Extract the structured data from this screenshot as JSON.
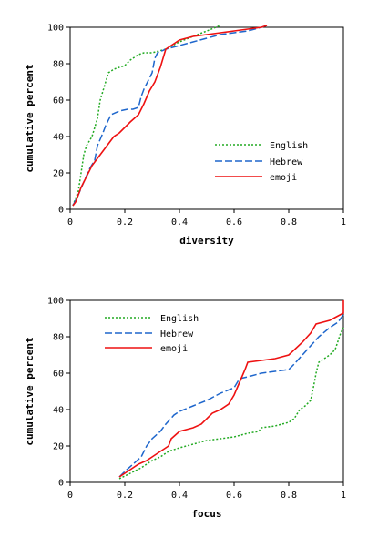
{
  "chart_data": [
    {
      "type": "line",
      "title": "",
      "xlabel": "diversity",
      "ylabel": "cumulative percent",
      "xlim": [
        0,
        1
      ],
      "ylim": [
        0,
        100
      ],
      "xticks": [
        "0",
        "0.2",
        "0.4",
        "0.6",
        "0.8",
        "1"
      ],
      "yticks": [
        "0",
        "20",
        "40",
        "60",
        "80",
        "100"
      ],
      "grid": false,
      "legend": "center-right",
      "series": [
        {
          "name": "English",
          "color": "#22aa22",
          "dash": "dotted",
          "x": [
            0.01,
            0.03,
            0.04,
            0.05,
            0.06,
            0.08,
            0.1,
            0.11,
            0.12,
            0.13,
            0.14,
            0.16,
            0.2,
            0.22,
            0.25,
            0.27,
            0.3,
            0.35,
            0.4,
            0.45,
            0.5,
            0.55
          ],
          "y": [
            2,
            10,
            20,
            30,
            35,
            40,
            50,
            60,
            65,
            70,
            75,
            77,
            79,
            82,
            85,
            86,
            86,
            88,
            92,
            95,
            98,
            101
          ]
        },
        {
          "name": "Hebrew",
          "color": "#1e66cc",
          "dash": "dashed",
          "x": [
            0.01,
            0.03,
            0.05,
            0.07,
            0.09,
            0.1,
            0.12,
            0.13,
            0.15,
            0.18,
            0.21,
            0.23,
            0.25,
            0.26,
            0.27,
            0.28,
            0.3,
            0.31,
            0.32,
            0.35,
            0.4,
            0.45,
            0.5,
            0.55,
            0.6,
            0.65,
            0.7,
            0.72
          ],
          "y": [
            2,
            8,
            15,
            22,
            27,
            35,
            42,
            46,
            52,
            54,
            55,
            55,
            56,
            62,
            66,
            69,
            75,
            83,
            86,
            88,
            90,
            92,
            94,
            96,
            97,
            98,
            100,
            101
          ]
        },
        {
          "name": "emoji",
          "color": "#ee1111",
          "dash": "solid",
          "x": [
            0.01,
            0.02,
            0.03,
            0.04,
            0.05,
            0.06,
            0.08,
            0.1,
            0.12,
            0.14,
            0.16,
            0.18,
            0.2,
            0.22,
            0.25,
            0.27,
            0.29,
            0.31,
            0.33,
            0.35,
            0.4,
            0.45,
            0.5,
            0.55,
            0.6,
            0.65,
            0.7,
            0.72
          ],
          "y": [
            2,
            4,
            8,
            12,
            15,
            18,
            24,
            28,
            32,
            36,
            40,
            42,
            45,
            48,
            52,
            58,
            65,
            70,
            78,
            88,
            93,
            95,
            96,
            97,
            98,
            99,
            100,
            101
          ]
        }
      ]
    },
    {
      "type": "line",
      "title": "",
      "xlabel": "focus",
      "ylabel": "cumulative percent",
      "xlim": [
        0,
        1
      ],
      "ylim": [
        0,
        100
      ],
      "xticks": [
        "0",
        "0.2",
        "0.4",
        "0.6",
        "0.8",
        "1"
      ],
      "yticks": [
        "0",
        "20",
        "40",
        "60",
        "80",
        "100"
      ],
      "grid": false,
      "legend": "top-left",
      "series": [
        {
          "name": "English",
          "color": "#22aa22",
          "dash": "dotted",
          "x": [
            0.18,
            0.22,
            0.26,
            0.28,
            0.3,
            0.33,
            0.36,
            0.4,
            0.45,
            0.5,
            0.55,
            0.6,
            0.65,
            0.69,
            0.7,
            0.75,
            0.8,
            0.82,
            0.84,
            0.86,
            0.88,
            0.89,
            0.9,
            0.91,
            0.93,
            0.95,
            0.97,
            0.99,
            1.0
          ],
          "y": [
            2,
            5,
            8,
            10,
            12,
            14,
            17,
            19,
            21,
            23,
            24,
            25,
            27,
            28,
            30,
            31,
            33,
            35,
            40,
            42,
            45,
            52,
            60,
            66,
            68,
            70,
            73,
            82,
            85
          ]
        },
        {
          "name": "Hebrew",
          "color": "#1e66cc",
          "dash": "dashed",
          "x": [
            0.18,
            0.2,
            0.23,
            0.26,
            0.28,
            0.3,
            0.33,
            0.35,
            0.38,
            0.4,
            0.45,
            0.5,
            0.55,
            0.6,
            0.62,
            0.65,
            0.7,
            0.75,
            0.8,
            0.82,
            0.85,
            0.88,
            0.91,
            0.95,
            0.98,
            1.0
          ],
          "y": [
            3,
            6,
            10,
            14,
            20,
            24,
            28,
            32,
            37,
            39,
            42,
            45,
            49,
            52,
            57,
            58,
            60,
            61,
            62,
            65,
            70,
            75,
            80,
            85,
            88,
            92
          ]
        },
        {
          "name": "emoji",
          "color": "#ee1111",
          "dash": "solid",
          "x": [
            0.18,
            0.22,
            0.25,
            0.28,
            0.3,
            0.33,
            0.36,
            0.37,
            0.4,
            0.45,
            0.48,
            0.52,
            0.55,
            0.58,
            0.6,
            0.62,
            0.64,
            0.65,
            0.7,
            0.75,
            0.8,
            0.85,
            0.88,
            0.9,
            0.95,
            1.0,
            1.0
          ],
          "y": [
            3,
            7,
            10,
            12,
            14,
            17,
            20,
            24,
            28,
            30,
            32,
            38,
            40,
            43,
            48,
            55,
            62,
            66,
            67,
            68,
            70,
            77,
            82,
            87,
            89,
            93,
            100
          ]
        }
      ]
    }
  ]
}
